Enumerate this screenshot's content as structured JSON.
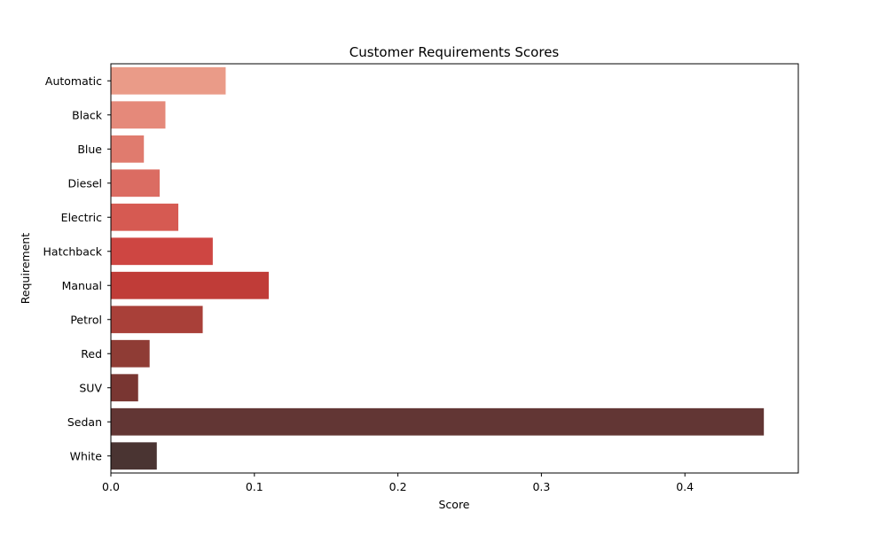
{
  "chart_data": {
    "type": "bar",
    "orientation": "horizontal",
    "title": "Customer Requirements Scores",
    "xlabel": "Score",
    "ylabel": "Requirement",
    "categories": [
      "Automatic",
      "Black",
      "Blue",
      "Diesel",
      "Electric",
      "Hatchback",
      "Manual",
      "Petrol",
      "Red",
      "SUV",
      "Sedan",
      "White"
    ],
    "values": [
      0.08,
      0.038,
      0.023,
      0.034,
      0.047,
      0.071,
      0.11,
      0.064,
      0.027,
      0.019,
      0.455,
      0.032
    ],
    "colors": [
      "#ea9b88",
      "#e5897a",
      "#e07b6e",
      "#db6c62",
      "#d65a52",
      "#ce4642",
      "#c03c38",
      "#a94039",
      "#8f3c35",
      "#793632",
      "#623634",
      "#4a3432"
    ],
    "xlim": [
      0,
      0.479
    ],
    "xticks": [
      0.0,
      0.1,
      0.2,
      0.3,
      0.4
    ],
    "xtick_labels": [
      "0.0",
      "0.1",
      "0.2",
      "0.3",
      "0.4"
    ],
    "grid": false,
    "legend": "none"
  }
}
